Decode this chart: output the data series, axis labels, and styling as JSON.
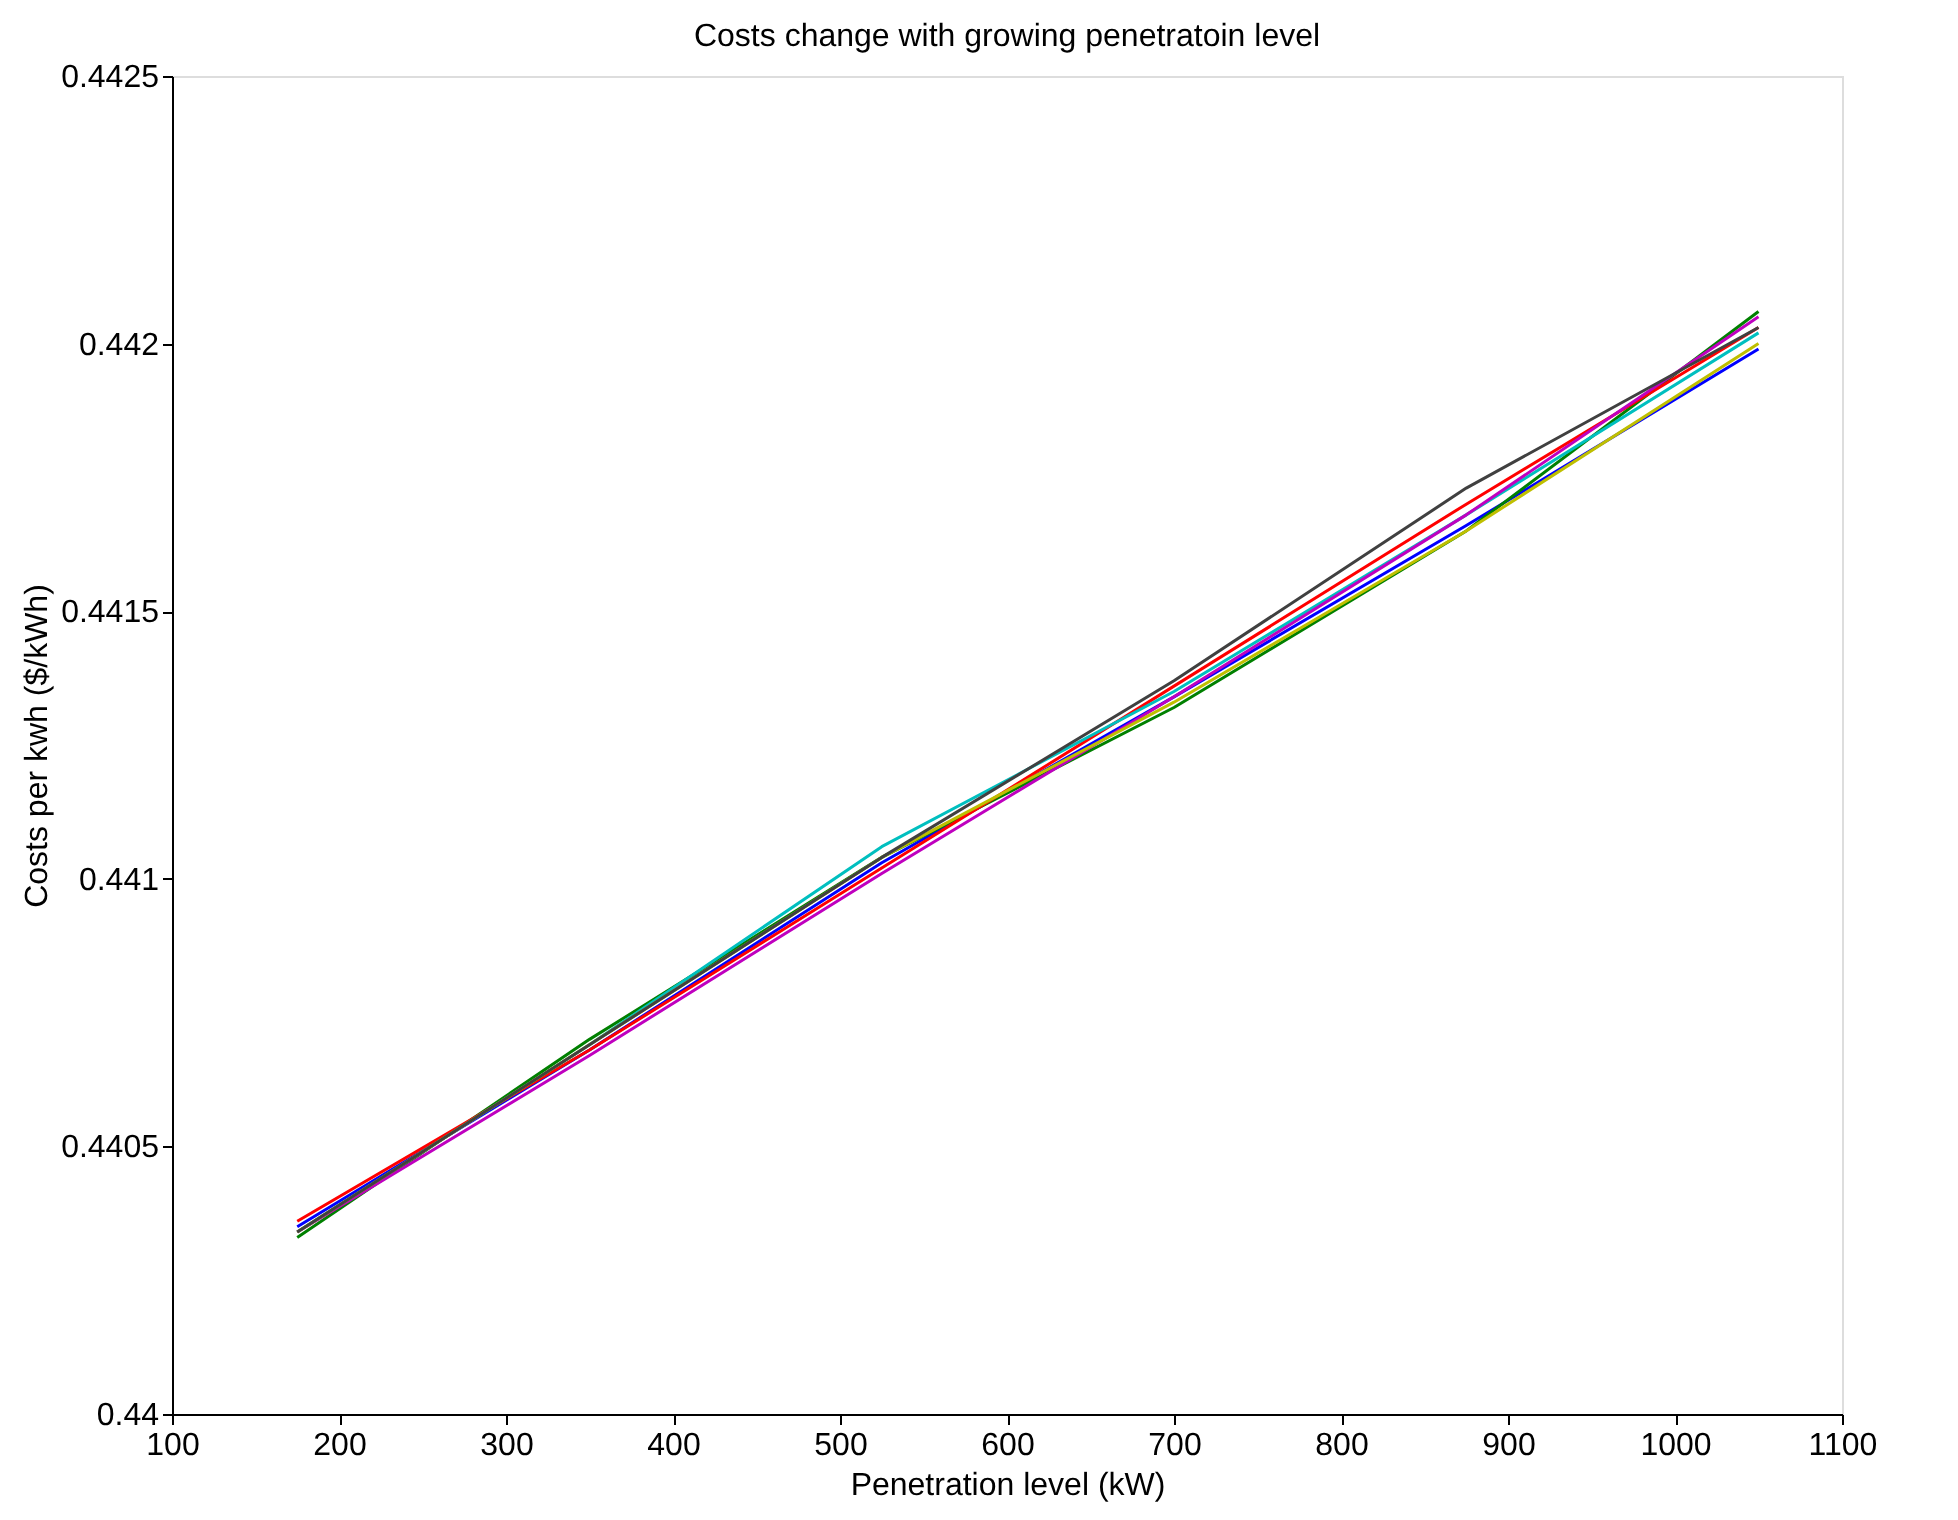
{
  "chart_data": {
    "type": "line",
    "title": "Costs change with growing penetratoin level",
    "xlabel": "Penetration level (kW)",
    "ylabel": "Costs per kwh ($/kWh)",
    "x": [
      175,
      350,
      525,
      700,
      875,
      1050
    ],
    "series": [
      {
        "color": "#0000ff",
        "values": [
          0.44035,
          0.44068,
          0.44103,
          0.44134,
          0.44166,
          0.44199
        ]
      },
      {
        "color": "#008000",
        "values": [
          0.44033,
          0.4407,
          0.44104,
          0.44132,
          0.44165,
          0.44206
        ]
      },
      {
        "color": "#ff0000",
        "values": [
          0.44036,
          0.44068,
          0.44102,
          0.44136,
          0.4417,
          0.44203
        ]
      },
      {
        "color": "#00bfbf",
        "values": [
          0.44034,
          0.44069,
          0.44106,
          0.44135,
          0.44168,
          0.44202
        ]
      },
      {
        "color": "#bf00bf",
        "values": [
          0.44034,
          0.44067,
          0.44101,
          0.44134,
          0.44168,
          0.44205
        ]
      },
      {
        "color": "#bfbf00",
        "values": [
          0.44034,
          0.44069,
          0.44104,
          0.44133,
          0.44165,
          0.442
        ]
      },
      {
        "color": "#404040",
        "values": [
          0.44034,
          0.44069,
          0.44104,
          0.44137,
          0.44173,
          0.44203
        ]
      }
    ],
    "xlim": [
      100,
      1100
    ],
    "xticks": [
      100,
      200,
      300,
      400,
      500,
      600,
      700,
      800,
      900,
      1000,
      1100
    ],
    "ylim": [
      0.44,
      0.4425
    ],
    "yticks": [
      0.44,
      0.4405,
      0.441,
      0.4415,
      0.442,
      0.4425
    ],
    "grid": false,
    "legend": false,
    "marker": "none",
    "line_style": "solid"
  }
}
